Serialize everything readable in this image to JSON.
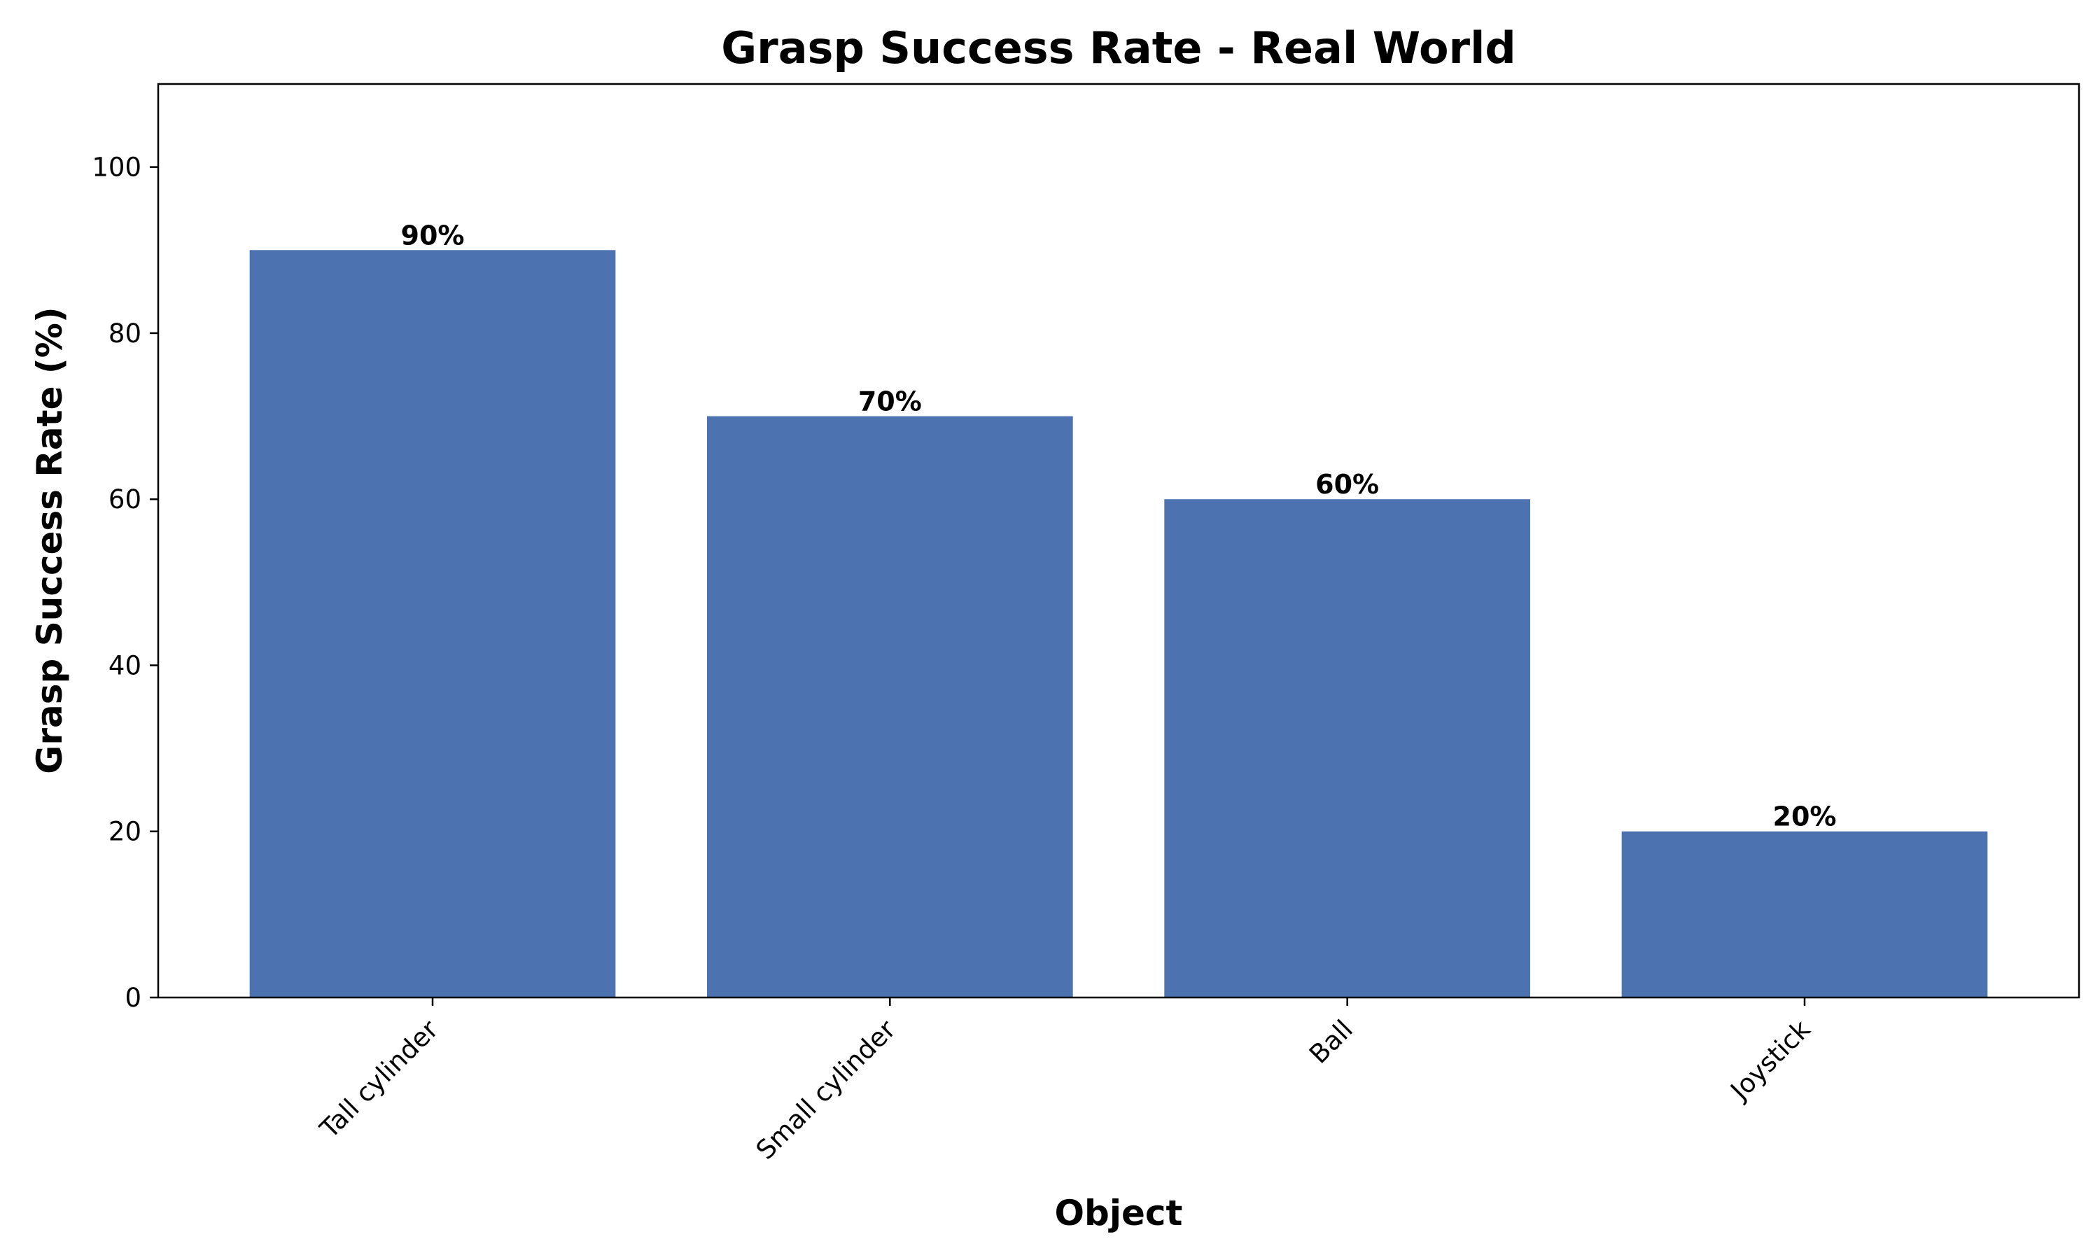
{
  "chart_data": {
    "type": "bar",
    "title": "Grasp Success Rate - Real World",
    "xlabel": "Object",
    "ylabel": "Grasp Success Rate (%)",
    "categories": [
      "Tall cylinder",
      "Small cylinder",
      "Ball",
      "Joystick"
    ],
    "values": [
      90,
      70,
      60,
      20
    ],
    "data_labels": [
      "90%",
      "70%",
      "60%",
      "20%"
    ],
    "ylim": [
      0,
      110
    ],
    "yticks": [
      0,
      20,
      40,
      60,
      80,
      100
    ],
    "grid": false,
    "bar_color": "#4c72b0",
    "xtick_rotation_deg": 45
  }
}
